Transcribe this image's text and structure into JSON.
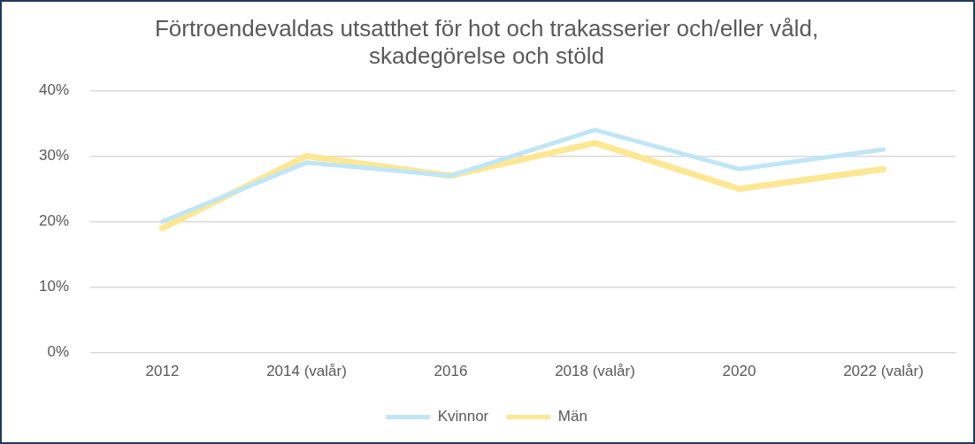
{
  "chart_data": {
    "type": "line",
    "title": "Förtroendevaldas utsatthet för hot och trakasserier och/eller våld, skadegörelse och stöld",
    "categories": [
      "2012",
      "2014 (valår)",
      "2016",
      "2018 (valår)",
      "2020",
      "2022 (valår)"
    ],
    "series": [
      {
        "name": "Kvinnor",
        "color": "#bfe6f7",
        "values": [
          20,
          29,
          27,
          34,
          28,
          31
        ]
      },
      {
        "name": "Män",
        "color": "#fde792",
        "values": [
          19,
          30,
          27,
          32,
          25,
          28
        ]
      }
    ],
    "ylim": [
      0,
      40
    ],
    "yticks": [
      {
        "value": 0,
        "label": "0%"
      },
      {
        "value": 10,
        "label": "10%"
      },
      {
        "value": 20,
        "label": "20%"
      },
      {
        "value": 30,
        "label": "30%"
      },
      {
        "value": 40,
        "label": "40%"
      }
    ],
    "grid": "y",
    "legend": "bottom",
    "marker": "none",
    "line_style": "solid"
  }
}
